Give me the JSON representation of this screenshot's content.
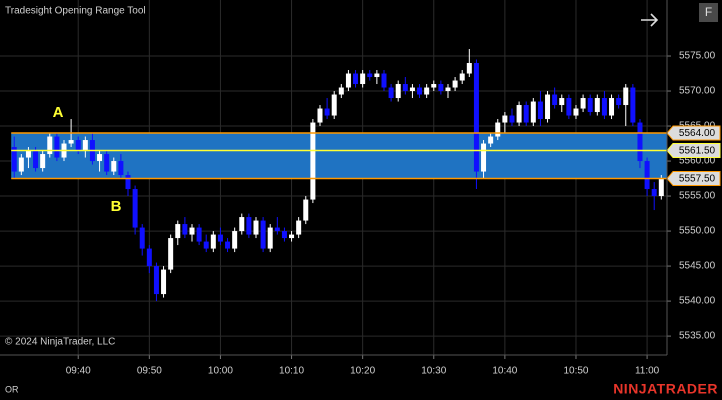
{
  "header": {
    "title": "Tradesight Opening Range Tool",
    "button": "F"
  },
  "footer": {
    "copyright": "© 2024 NinjaTrader, LLC",
    "indicator": "OR",
    "brand": "NINJATRADER"
  },
  "chart_data": {
    "type": "candlestick",
    "x": [
      571,
      572,
      573,
      574,
      575,
      576,
      577,
      578,
      579,
      580,
      581,
      582,
      583,
      584,
      585,
      586,
      587,
      588,
      589,
      590,
      591,
      592,
      593,
      594,
      595,
      596,
      597,
      598,
      599,
      600,
      601,
      602,
      603,
      604,
      605,
      606,
      607,
      608,
      609,
      610,
      611,
      612,
      613,
      614,
      615,
      616,
      617,
      618,
      619,
      620,
      621,
      622,
      623,
      624,
      625,
      626,
      627,
      628,
      629,
      630,
      631,
      632,
      633,
      634,
      635,
      636,
      637,
      638,
      639,
      640,
      641,
      642,
      643,
      644,
      645,
      646,
      647,
      648,
      649,
      650,
      651,
      652,
      653,
      654,
      655,
      656,
      657,
      658,
      659,
      660,
      661,
      662
    ],
    "open": [
      5562,
      5558.5,
      5560.5,
      5561.5,
      5559,
      5561,
      5563.5,
      5560.5,
      5562.5,
      5563,
      5561.5,
      5563,
      5560,
      5561,
      5558.5,
      5560,
      5558,
      5556,
      5550.5,
      5547.5,
      5545,
      5541,
      5544.5,
      5549,
      5551,
      5549.5,
      5550.5,
      5548.5,
      5547.5,
      5549.5,
      5548.5,
      5547.5,
      5550,
      5552,
      5549.5,
      5551.5,
      5547.5,
      5550.5,
      5550,
      5549,
      5549.5,
      5551.5,
      5554.5,
      5565.5,
      5567.5,
      5566.5,
      5569.5,
      5570.5,
      5572.5,
      5571,
      5572.5,
      5572,
      5572.5,
      5570.5,
      5569,
      5571,
      5570,
      5570.5,
      5569.5,
      5570.5,
      5571,
      5570,
      5570.5,
      5571.5,
      5572.5,
      5574,
      5558.5,
      5562.5,
      5563.5,
      5565.5,
      5566.5,
      5565.5,
      5568,
      5565.5,
      5568.5,
      5566,
      5569.5,
      5568,
      5569,
      5566.5,
      5567.5,
      5569,
      5567,
      5569,
      5566.5,
      5569,
      5568,
      5570.5,
      5565.5,
      5560,
      5556,
      5555
    ],
    "high": [
      5563.5,
      5561,
      5562,
      5562,
      5561.5,
      5564,
      5564,
      5563,
      5566,
      5563.5,
      5563.5,
      5564,
      5561.5,
      5561.5,
      5560.5,
      5561,
      5558.5,
      5556.5,
      5551,
      5548,
      5545.5,
      5545,
      5549.5,
      5551.5,
      5552,
      5551,
      5551,
      5549.5,
      5550,
      5550.5,
      5549,
      5550.5,
      5552.5,
      5552.5,
      5552,
      5552,
      5551,
      5552,
      5550.5,
      5550,
      5552,
      5555,
      5566,
      5568,
      5569,
      5570,
      5571,
      5573,
      5573,
      5573,
      5573,
      5573,
      5573,
      5571,
      5571.5,
      5572,
      5571,
      5571,
      5571,
      5571.5,
      5571.5,
      5571,
      5572,
      5573,
      5576,
      5574.5,
      5563,
      5564,
      5566,
      5567,
      5567.5,
      5568.5,
      5568.5,
      5569,
      5570,
      5570,
      5570.5,
      5569.5,
      5569.5,
      5568,
      5569.5,
      5569.5,
      5569.5,
      5570,
      5569.5,
      5569.5,
      5571,
      5571,
      5566,
      5560.5,
      5557,
      5558
    ],
    "low": [
      5557.5,
      5558,
      5559,
      5558.5,
      5558.5,
      5560.5,
      5560,
      5560,
      5562,
      5561,
      5560.5,
      5559.5,
      5558.5,
      5558,
      5558,
      5557.5,
      5555,
      5549.5,
      5546.5,
      5544,
      5540,
      5540.5,
      5544,
      5548,
      5549,
      5548.5,
      5548,
      5547,
      5547,
      5548,
      5547,
      5547,
      5549.5,
      5549,
      5549,
      5547,
      5547,
      5549.5,
      5548.5,
      5548.5,
      5549,
      5551,
      5554,
      5565,
      5566,
      5566,
      5569,
      5570,
      5570.5,
      5570.5,
      5571.5,
      5571,
      5570,
      5568.5,
      5568.5,
      5569.5,
      5569,
      5569,
      5569,
      5570,
      5569.5,
      5569,
      5570,
      5571,
      5572,
      5556,
      5557.5,
      5562,
      5563,
      5564,
      5565,
      5565,
      5565,
      5565,
      5565,
      5565.5,
      5567.5,
      5567,
      5566,
      5566,
      5567,
      5566.5,
      5566.5,
      5566,
      5566,
      5567.5,
      5565,
      5565,
      5559,
      5555,
      5553,
      5554.5
    ],
    "close": [
      5558.5,
      5560.5,
      5561.5,
      5559,
      5561,
      5563.5,
      5560.5,
      5562.5,
      5563,
      5561.5,
      5563,
      5560,
      5561,
      5558.5,
      5560,
      5558,
      5556,
      5550.5,
      5547.5,
      5545,
      5541,
      5544.5,
      5549,
      5551,
      5549.5,
      5550.5,
      5548.5,
      5547.5,
      5549.5,
      5548.5,
      5547.5,
      5550,
      5552,
      5549.5,
      5551.5,
      5547.5,
      5550.5,
      5550,
      5549,
      5549.5,
      5551.5,
      5554.5,
      5565.5,
      5567.5,
      5566.5,
      5569.5,
      5570.5,
      5572.5,
      5571,
      5572.5,
      5572,
      5572.5,
      5570.5,
      5569,
      5571,
      5570,
      5570.5,
      5569.5,
      5570.5,
      5571,
      5570,
      5570.5,
      5571.5,
      5572.5,
      5574,
      5558.5,
      5562.5,
      5563.5,
      5565.5,
      5566.5,
      5565.5,
      5568,
      5565.5,
      5568.5,
      5566,
      5569.5,
      5568,
      5569,
      5566.5,
      5567.5,
      5569,
      5567,
      5569,
      5566.5,
      5569,
      5568,
      5570.5,
      5565.5,
      5560,
      5556,
      5555,
      5557.5
    ],
    "up_color": "#ffffff",
    "down_color": "#1010ff",
    "xlim": [
      569,
      662.8
    ],
    "xticks": [
      {
        "value": 580,
        "label": "09:40"
      },
      {
        "value": 590,
        "label": "09:50"
      },
      {
        "value": 600,
        "label": "10:00"
      },
      {
        "value": 610,
        "label": "10:10"
      },
      {
        "value": 620,
        "label": "10:20"
      },
      {
        "value": 630,
        "label": "10:30"
      },
      {
        "value": 640,
        "label": "10:40"
      },
      {
        "value": 650,
        "label": "10:50"
      },
      {
        "value": 660,
        "label": "11:00"
      }
    ],
    "ylim": [
      5532.3,
      5583
    ],
    "yticks": [
      {
        "value": 5535,
        "label": "5535.00"
      },
      {
        "value": 5540,
        "label": "5540.00"
      },
      {
        "value": 5545,
        "label": "5545.00"
      },
      {
        "value": 5550,
        "label": "5550.00"
      },
      {
        "value": 5555,
        "label": "5555.00"
      },
      {
        "value": 5560,
        "label": "5560.00"
      },
      {
        "value": 5565,
        "label": "5565.00"
      },
      {
        "value": 5570,
        "label": "5570.00"
      },
      {
        "value": 5575,
        "label": "5575.00"
      }
    ],
    "grid": true,
    "opening_range": {
      "values": [
        5564,
        5561.5,
        5557.5
      ],
      "value_labels": [
        "5564.00",
        "5561.50",
        "5557.50"
      ],
      "colors": [
        "#ff9900",
        "#ffff33",
        "#ff9900"
      ],
      "fill": "#1f73c2"
    },
    "annotations": [
      "A",
      "B"
    ],
    "annotation_color": "#ffff33"
  }
}
